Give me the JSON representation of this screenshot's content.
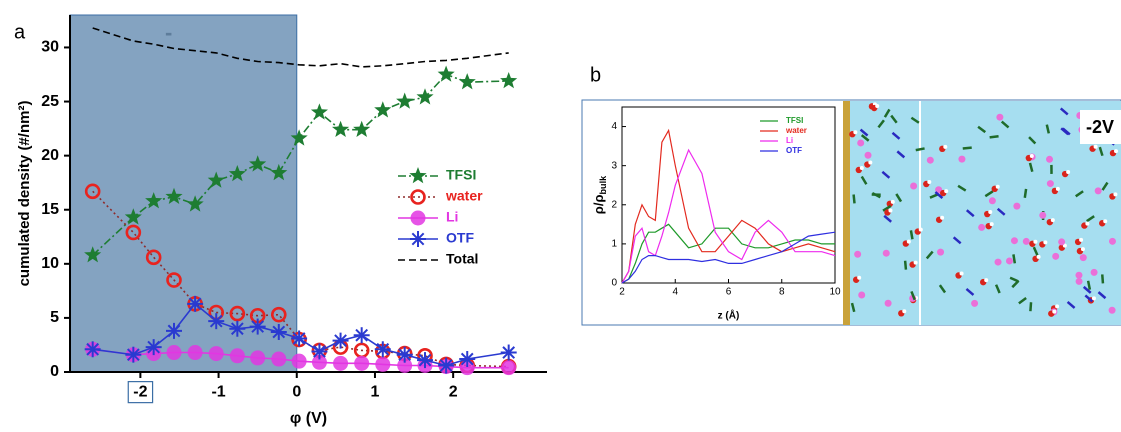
{
  "chart_data": [
    {
      "type": "line",
      "panel_label": "a",
      "annotation": "-",
      "x_label": "φ (V)",
      "y_label": "cumulated density (#/nm²)",
      "xlim": [
        -2.9,
        3.2
      ],
      "ylim": [
        0,
        33
      ],
      "xticks": [
        -2,
        -1,
        0,
        1,
        2
      ],
      "yticks": [
        0,
        5,
        10,
        15,
        20,
        25,
        30
      ],
      "boxed_xticks": [
        -2
      ],
      "shaded_xrange": [
        -2.9,
        0
      ],
      "shade_color": "#6f93b6",
      "legend": "right",
      "x": [
        -2.61,
        -2.09,
        -1.83,
        -1.57,
        -1.3,
        -1.03,
        -0.76,
        -0.5,
        -0.23,
        0.03,
        0.29,
        0.56,
        0.83,
        1.1,
        1.38,
        1.64,
        1.91,
        2.18,
        2.71
      ],
      "series": [
        {
          "name": "TFSI",
          "color": "#1e7d32",
          "marker": "star",
          "dash": "8 3 2 3",
          "values": [
            10.8,
            14.3,
            15.8,
            16.2,
            15.5,
            17.7,
            18.3,
            19.2,
            18.4,
            21.6,
            24.0,
            22.4,
            22.4,
            24.2,
            25.0,
            25.4,
            27.5,
            26.8,
            26.9
          ]
        },
        {
          "name": "water",
          "color": "#e8231f",
          "line_color": "#8f2b2b",
          "marker": "open-circle",
          "dash": "2 3",
          "values": [
            16.7,
            12.9,
            10.6,
            8.5,
            6.3,
            5.5,
            5.4,
            5.2,
            5.3,
            3.0,
            2.0,
            2.3,
            2.0,
            1.9,
            1.7,
            1.5,
            0.7,
            0.6,
            0.5
          ]
        },
        {
          "name": "Li",
          "color": "#e236e2",
          "marker": "sphere",
          "dash": "",
          "values": [
            2.1,
            1.6,
            1.7,
            1.8,
            1.8,
            1.7,
            1.5,
            1.3,
            1.2,
            1.0,
            0.9,
            0.8,
            0.8,
            0.7,
            0.6,
            0.6,
            0.5,
            0.4,
            0.4
          ]
        },
        {
          "name": "OTF",
          "color": "#2a3ad0",
          "marker": "asterisk",
          "dash": "",
          "values": [
            2.1,
            1.6,
            2.3,
            3.8,
            6.3,
            4.7,
            4.0,
            4.2,
            3.7,
            3.1,
            1.9,
            2.9,
            3.4,
            2.1,
            1.6,
            1.1,
            0.6,
            1.2,
            1.8
          ]
        },
        {
          "name": "Total",
          "color": "#000000",
          "marker": "none",
          "dash": "7 4",
          "values": [
            31.8,
            30.6,
            30.3,
            29.9,
            29.7,
            29.5,
            29.0,
            28.7,
            28.6,
            28.4,
            28.3,
            28.5,
            28.2,
            28.3,
            28.5,
            28.7,
            28.8,
            29.0,
            29.5
          ]
        }
      ]
    },
    {
      "type": "line",
      "panel_label": "b",
      "annotation": "-2V",
      "x_label": "z (Å)",
      "y_label": "ρ/ρ",
      "y_label_sub": "bulk",
      "xlim": [
        2,
        10
      ],
      "ylim": [
        0,
        4.5
      ],
      "xticks": [
        2,
        4,
        6,
        8,
        10
      ],
      "yticks": [
        0,
        1,
        2,
        3,
        4
      ],
      "legend": "upper right",
      "x": [
        2,
        2.25,
        2.5,
        2.75,
        3,
        3.25,
        3.5,
        3.75,
        4,
        4.5,
        5,
        5.5,
        6,
        6.5,
        7,
        7.5,
        8,
        8.5,
        9,
        9.5,
        10
      ],
      "series": [
        {
          "name": "TFSI",
          "color": "#1f9a2a",
          "values": [
            0,
            0.1,
            0.5,
            1.0,
            1.3,
            1.3,
            1.4,
            1.5,
            1.3,
            0.9,
            1.0,
            1.4,
            1.4,
            1.0,
            0.9,
            0.9,
            1.0,
            1.1,
            1.1,
            1.0,
            1.0
          ]
        },
        {
          "name": "water",
          "color": "#e32a1f",
          "values": [
            0,
            0.3,
            1.5,
            2.0,
            1.7,
            1.6,
            3.6,
            3.9,
            3.0,
            1.4,
            0.8,
            0.8,
            1.2,
            1.6,
            1.4,
            1.0,
            0.8,
            0.9,
            1.0,
            0.9,
            0.8
          ]
        },
        {
          "name": "Li",
          "color": "#ee2bee",
          "values": [
            0,
            0.3,
            1.2,
            1.4,
            0.8,
            0.7,
            1.2,
            1.8,
            2.5,
            3.4,
            2.8,
            1.3,
            0.8,
            0.6,
            1.3,
            1.6,
            1.3,
            0.8,
            0.8,
            0.8,
            0.7
          ]
        },
        {
          "name": "OTF",
          "color": "#2f2fe0",
          "values": [
            0,
            0.1,
            0.3,
            0.6,
            0.7,
            0.7,
            0.65,
            0.6,
            0.6,
            0.6,
            0.55,
            0.6,
            0.5,
            0.5,
            0.6,
            0.7,
            0.8,
            1.0,
            1.2,
            1.25,
            1.3
          ]
        }
      ]
    }
  ]
}
